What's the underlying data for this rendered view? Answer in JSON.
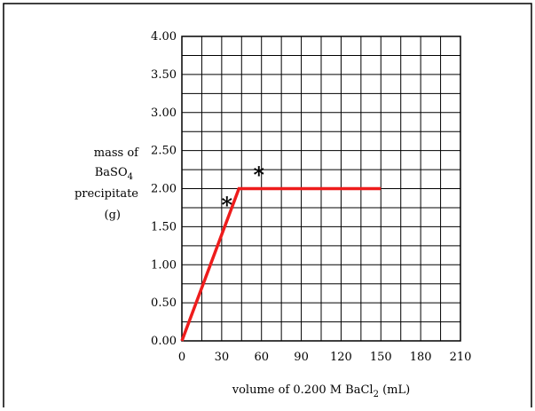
{
  "chart_data": {
    "type": "line",
    "title": "",
    "ylabel_lines": [
      "mass of",
      "BaSO",
      "precipitate",
      "(g)"
    ],
    "ylabel_subscript": "4",
    "xlabel": {
      "prefix": "volume of 0.200 M BaCl",
      "subscript": "2",
      "suffix": " (mL)"
    },
    "xlim": [
      0,
      210
    ],
    "ylim": [
      0,
      4
    ],
    "x_ticks": [
      0,
      30,
      60,
      90,
      120,
      150,
      180,
      210
    ],
    "y_ticks": [
      "0.00",
      "0.50",
      "1.00",
      "1.50",
      "2.00",
      "2.50",
      "3.00",
      "3.50",
      "4.00"
    ],
    "grid": true,
    "x_minor_step": 15,
    "y_minor_step": 0.25,
    "series": [
      {
        "color": "#ee1c1c",
        "points": [
          [
            0,
            0
          ],
          [
            43,
            2.0
          ],
          [
            150,
            2.0
          ]
        ]
      }
    ],
    "annotations": [
      {
        "text": "*",
        "x": 34,
        "y": 1.8
      },
      {
        "text": "*",
        "x": 58,
        "y": 2.2
      }
    ]
  }
}
